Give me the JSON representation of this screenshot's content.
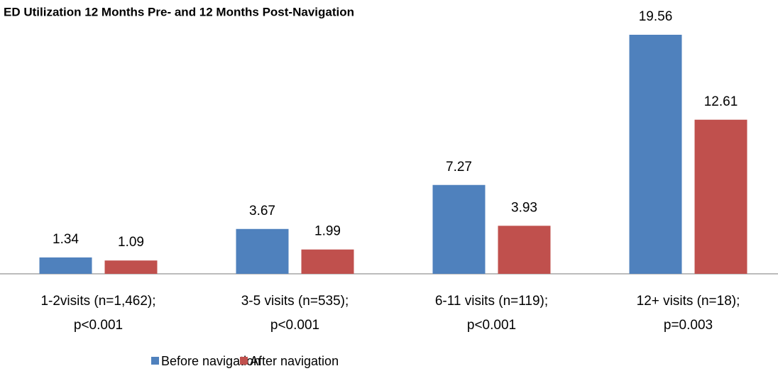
{
  "chart_data": {
    "type": "bar",
    "title": "ED Utilization 12 Months Pre- and 12 Months Post-Navigation",
    "categories": [
      [
        "1-2visits (n=1,462);",
        "p<0.001"
      ],
      [
        "3-5 visits (n=535);",
        "p<0.001"
      ],
      [
        "6-11 visits (n=119);",
        "p<0.001"
      ],
      [
        "12+ visits (n=18);",
        "p=0.003"
      ]
    ],
    "series": [
      {
        "name": "Before navigation",
        "color": "#4f81bd",
        "values": [
          1.34,
          3.67,
          7.27,
          19.56
        ]
      },
      {
        "name": "After navigation",
        "color": "#c0504d",
        "values": [
          1.09,
          1.99,
          3.93,
          12.61
        ]
      }
    ],
    "legend": "bottom-left"
  }
}
